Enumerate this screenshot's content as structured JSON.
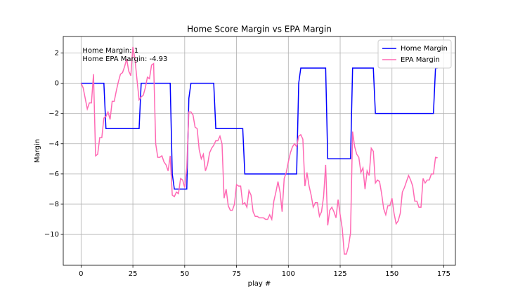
{
  "chart_data": {
    "type": "line",
    "title": "Home Score Margin vs EPA Margin",
    "x_label": "play #",
    "y_label": "Margin",
    "annotations": [
      "Home Margin: 1",
      "Home EPA Margin: -4.93"
    ],
    "x": [
      0,
      1,
      2,
      3,
      4,
      5,
      6,
      7,
      8,
      9,
      10,
      11,
      12,
      13,
      14,
      15,
      16,
      17,
      18,
      19,
      20,
      21,
      22,
      23,
      24,
      25,
      26,
      27,
      28,
      29,
      30,
      31,
      32,
      33,
      34,
      35,
      36,
      37,
      38,
      39,
      40,
      41,
      42,
      43,
      44,
      45,
      46,
      47,
      48,
      49,
      50,
      51,
      52,
      53,
      54,
      55,
      56,
      57,
      58,
      59,
      60,
      61,
      62,
      63,
      64,
      65,
      66,
      67,
      68,
      69,
      70,
      71,
      72,
      73,
      74,
      75,
      76,
      77,
      78,
      79,
      80,
      81,
      82,
      83,
      84,
      85,
      86,
      87,
      88,
      89,
      90,
      91,
      92,
      93,
      94,
      95,
      96,
      97,
      98,
      99,
      100,
      101,
      102,
      103,
      104,
      105,
      106,
      107,
      108,
      109,
      110,
      111,
      112,
      113,
      114,
      115,
      116,
      117,
      118,
      119,
      120,
      121,
      122,
      123,
      124,
      125,
      126,
      127,
      128,
      129,
      130,
      131,
      132,
      133,
      134,
      135,
      136,
      137,
      138,
      139,
      140,
      141,
      142,
      143,
      144,
      145,
      146,
      147,
      148,
      149,
      150,
      151,
      152,
      153,
      154,
      155,
      156,
      157,
      158,
      159,
      160,
      161,
      162,
      163,
      164,
      165,
      166,
      167,
      168,
      169,
      170,
      171,
      172
    ],
    "series": [
      {
        "name": "Home Margin",
        "color": "#0000ff",
        "values": [
          0,
          0,
          0,
          0,
          0,
          0,
          0,
          0,
          0,
          0,
          0,
          0,
          -3,
          -3,
          -3,
          -3,
          -3,
          -3,
          -3,
          -3,
          -3,
          -3,
          -3,
          -3,
          -3,
          -3,
          -3,
          -3,
          -3,
          0,
          0,
          0,
          0,
          0,
          0,
          0,
          0,
          0,
          0,
          0,
          0,
          0,
          0,
          0,
          -6,
          -7,
          -7,
          -7,
          -7,
          -7,
          -7,
          -7,
          -1,
          0,
          0,
          0,
          0,
          0,
          0,
          0,
          0,
          0,
          0,
          0,
          0,
          -3,
          -3,
          -3,
          -3,
          -3,
          -3,
          -3,
          -3,
          -3,
          -3,
          -3,
          -3,
          -3,
          -3,
          -6,
          -6,
          -6,
          -6,
          -6,
          -6,
          -6,
          -6,
          -6,
          -6,
          -6,
          -6,
          -6,
          -6,
          -6,
          -6,
          -6,
          -6,
          -6,
          -6,
          -6,
          -6,
          -6,
          -6,
          -6,
          -6,
          0,
          1,
          1,
          1,
          1,
          1,
          1,
          1,
          1,
          1,
          1,
          1,
          1,
          1,
          -5,
          -5,
          -5,
          -5,
          -5,
          -5,
          -5,
          -5,
          -5,
          -5,
          -5,
          -5,
          1,
          1,
          1,
          1,
          1,
          1,
          1,
          1,
          1,
          1,
          1,
          -2,
          -2,
          -2,
          -2,
          -2,
          -2,
          -2,
          -2,
          -2,
          -2,
          -2,
          -2,
          -2,
          -2,
          -2,
          -2,
          -2,
          -2,
          -2,
          -2,
          -2,
          -2,
          -2,
          -2,
          -2,
          -2,
          -2,
          -2,
          -2,
          1,
          1
        ]
      },
      {
        "name": "EPA Margin",
        "color": "#ff69b4",
        "values": [
          0,
          -0.3,
          -1,
          -1.7,
          -1.3,
          -1.3,
          0.6,
          -4.8,
          -4.7,
          -3.6,
          -3.6,
          -2.3,
          -2.2,
          -1.9,
          -2.4,
          -1.2,
          -1.2,
          -0.5,
          0.1,
          0.6,
          0.7,
          1.1,
          1.6,
          0.8,
          0.5,
          2.4,
          1.6,
          0.2,
          -1.1,
          -0.9,
          -0.8,
          -0.3,
          0.4,
          0.3,
          1.2,
          1.3,
          -4,
          -4.9,
          -4.9,
          -4.8,
          -5.2,
          -5.4,
          -5.8,
          -4.8,
          -7.4,
          -7.5,
          -7.2,
          -7.3,
          -6.3,
          -6.4,
          -6.9,
          -5.6,
          -1.9,
          -1.9,
          -2.1,
          -2.9,
          -3,
          -4.4,
          -5,
          -4.7,
          -5.8,
          -5.4,
          -4.6,
          -4.3,
          -4.1,
          -3.8,
          -3.8,
          -3.5,
          -4,
          -7.6,
          -7,
          -8.1,
          -8.4,
          -8.4,
          -8,
          -6.7,
          -6.8,
          -6.8,
          -8,
          -7.9,
          -8.2,
          -7.1,
          -7.4,
          -8.5,
          -8.8,
          -8.8,
          -8.9,
          -8.9,
          -8.9,
          -9,
          -9,
          -8.7,
          -9,
          -7.8,
          -7.2,
          -6.5,
          -7.2,
          -8.5,
          -6.3,
          -5.9,
          -5.2,
          -4.6,
          -4.2,
          -4,
          -4.2,
          -3.5,
          -3.4,
          -3.7,
          -6.8,
          -5.9,
          -6.8,
          -7.4,
          -8.2,
          -7.9,
          -7.9,
          -8.8,
          -8.5,
          -7.5,
          -5.4,
          -9.4,
          -8.4,
          -8.2,
          -8.5,
          -8.9,
          -7.7,
          -8.7,
          -9.6,
          -11.3,
          -11.3,
          -10.8,
          -9.9,
          -3.2,
          -4.2,
          -4.7,
          -4.9,
          -5.9,
          -5.6,
          -7,
          -5.8,
          -6.1,
          -4.3,
          -4.5,
          -6.6,
          -6.4,
          -6.5,
          -7.3,
          -8.3,
          -8.7,
          -8.1,
          -8.1,
          -7.6,
          -8.6,
          -9.3,
          -9.1,
          -8.6,
          -7.2,
          -6.9,
          -6.5,
          -6.1,
          -6.4,
          -6.8,
          -7.8,
          -7.8,
          -8.2,
          -8.2,
          -6.3,
          -6.6,
          -6.4,
          -6.4,
          -6,
          -6,
          -4.9,
          -4.93
        ]
      }
    ],
    "xlim": [
      -8.6,
      180.6
    ],
    "ylim": [
      -12.04,
      3.09
    ],
    "xticks": [
      0,
      25,
      50,
      75,
      100,
      125,
      150,
      175
    ],
    "yticks": [
      {
        "value": -10,
        "label": "−10"
      },
      {
        "value": -8,
        "label": "−8"
      },
      {
        "value": -6,
        "label": "−6"
      },
      {
        "value": -4,
        "label": "−4"
      },
      {
        "value": -2,
        "label": "−2"
      },
      0,
      2
    ],
    "grid": true,
    "legend": "upper right"
  }
}
